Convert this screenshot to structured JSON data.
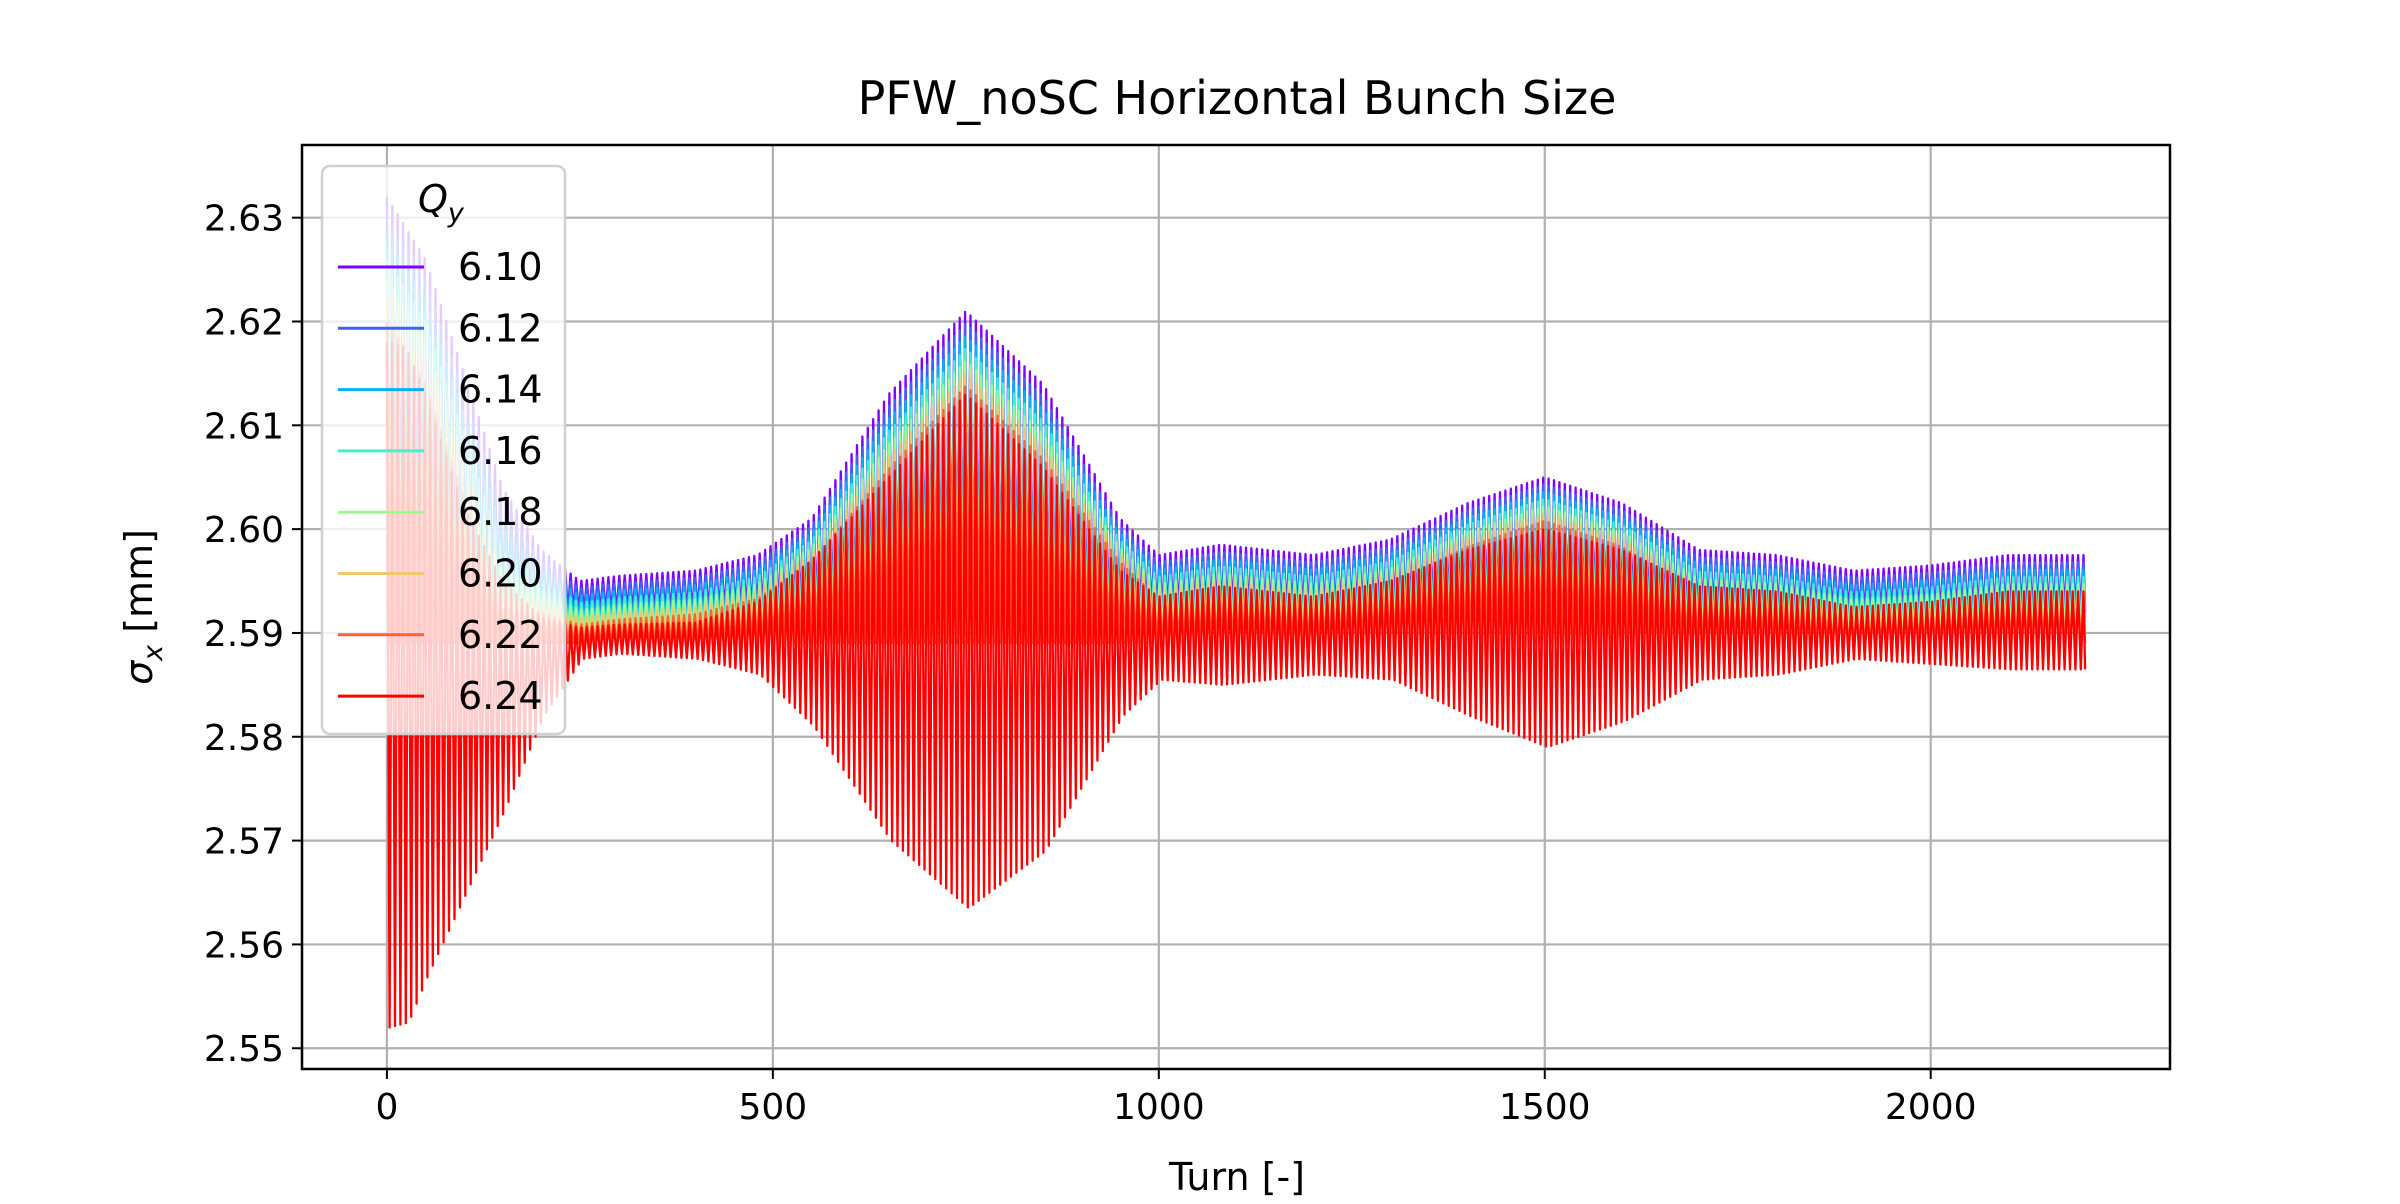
{
  "chart_data": {
    "type": "line",
    "title": "PFW_noSC Horizontal Bunch Size",
    "xlabel": "Turn [-]",
    "ylabel": {
      "symbol": "σ",
      "subscript": "x",
      "unit": " [mm]"
    },
    "xlim": [
      -110,
      2310
    ],
    "ylim": [
      2.548,
      2.637
    ],
    "xticks": [
      0,
      500,
      1000,
      1500,
      2000
    ],
    "xtick_labels": [
      "0",
      "500",
      "1000",
      "1500",
      "2000"
    ],
    "yticks": [
      2.55,
      2.56,
      2.57,
      2.58,
      2.59,
      2.6,
      2.61,
      2.62,
      2.63
    ],
    "ytick_labels": [
      "2.55",
      "2.56",
      "2.57",
      "2.58",
      "2.59",
      "2.60",
      "2.61",
      "2.62",
      "2.63"
    ],
    "grid": true,
    "legend": {
      "title_symbol": "Q",
      "title_subscript": "y",
      "placement": "upper-left"
    },
    "series": [
      {
        "name": "6.10",
        "color": "#7f00ff",
        "upper": [
          [
            0,
            2.632
          ],
          [
            50,
            2.626
          ],
          [
            100,
            2.615
          ],
          [
            150,
            2.604
          ],
          [
            200,
            2.598
          ],
          [
            250,
            2.595
          ],
          [
            300,
            2.5955
          ],
          [
            400,
            2.596
          ],
          [
            480,
            2.5975
          ],
          [
            550,
            2.601
          ],
          [
            650,
            2.613
          ],
          [
            750,
            2.621
          ],
          [
            850,
            2.614
          ],
          [
            950,
            2.601
          ],
          [
            1000,
            2.5975
          ],
          [
            1080,
            2.5985
          ],
          [
            1200,
            2.5975
          ],
          [
            1300,
            2.599
          ],
          [
            1400,
            2.6025
          ],
          [
            1500,
            2.605
          ],
          [
            1600,
            2.6025
          ],
          [
            1700,
            2.598
          ],
          [
            1800,
            2.5975
          ],
          [
            1900,
            2.596
          ],
          [
            2000,
            2.5965
          ],
          [
            2100,
            2.5975
          ],
          [
            2200,
            2.5975
          ]
        ],
        "lower": [
          [
            0,
            2.592
          ],
          [
            100,
            2.592
          ],
          [
            200,
            2.592
          ],
          [
            2200,
            2.592
          ]
        ]
      },
      {
        "name": "6.12",
        "color": "#3f61fa",
        "upper": [
          [
            0,
            2.63
          ],
          [
            50,
            2.624
          ],
          [
            100,
            2.613
          ],
          [
            150,
            2.602
          ],
          [
            200,
            2.597
          ],
          [
            250,
            2.5943
          ],
          [
            300,
            2.5948
          ],
          [
            400,
            2.5953
          ],
          [
            480,
            2.5968
          ],
          [
            550,
            2.6003
          ],
          [
            650,
            2.6118
          ],
          [
            750,
            2.6198
          ],
          [
            850,
            2.6128
          ],
          [
            950,
            2.6003
          ],
          [
            1000,
            2.5968
          ],
          [
            1080,
            2.5978
          ],
          [
            1200,
            2.5968
          ],
          [
            1300,
            2.5983
          ],
          [
            1400,
            2.6018
          ],
          [
            1500,
            2.6043
          ],
          [
            1600,
            2.6018
          ],
          [
            1700,
            2.5973
          ],
          [
            1800,
            2.5968
          ],
          [
            1900,
            2.5953
          ],
          [
            2000,
            2.5958
          ],
          [
            2100,
            2.5968
          ],
          [
            2200,
            2.5968
          ]
        ],
        "lower": [
          [
            0,
            2.5915
          ],
          [
            2200,
            2.5915
          ]
        ]
      },
      {
        "name": "6.14",
        "color": "#01b3f2",
        "upper": [
          [
            0,
            2.628
          ],
          [
            50,
            2.622
          ],
          [
            100,
            2.611
          ],
          [
            150,
            2.6
          ],
          [
            200,
            2.596
          ],
          [
            250,
            2.5936
          ],
          [
            300,
            2.5941
          ],
          [
            400,
            2.5946
          ],
          [
            480,
            2.5961
          ],
          [
            550,
            2.5996
          ],
          [
            650,
            2.6106
          ],
          [
            750,
            2.6186
          ],
          [
            850,
            2.6116
          ],
          [
            950,
            2.5996
          ],
          [
            1000,
            2.5961
          ],
          [
            1080,
            2.5971
          ],
          [
            1200,
            2.5961
          ],
          [
            1300,
            2.5976
          ],
          [
            1400,
            2.6011
          ],
          [
            1500,
            2.6036
          ],
          [
            1600,
            2.6011
          ],
          [
            1700,
            2.5966
          ],
          [
            1800,
            2.5961
          ],
          [
            1900,
            2.5946
          ],
          [
            2000,
            2.5951
          ],
          [
            2100,
            2.5961
          ],
          [
            2200,
            2.5961
          ]
        ],
        "lower": [
          [
            0,
            2.591
          ],
          [
            2200,
            2.591
          ]
        ]
      },
      {
        "name": "6.16",
        "color": "#41f1d0",
        "upper": [
          [
            0,
            2.626
          ],
          [
            50,
            2.62
          ],
          [
            100,
            2.609
          ],
          [
            150,
            2.598
          ],
          [
            200,
            2.595
          ],
          [
            250,
            2.5929
          ],
          [
            300,
            2.5934
          ],
          [
            400,
            2.5939
          ],
          [
            480,
            2.5954
          ],
          [
            550,
            2.5989
          ],
          [
            650,
            2.6094
          ],
          [
            750,
            2.6174
          ],
          [
            850,
            2.6104
          ],
          [
            950,
            2.5989
          ],
          [
            1000,
            2.5954
          ],
          [
            1080,
            2.5964
          ],
          [
            1200,
            2.5954
          ],
          [
            1300,
            2.5969
          ],
          [
            1400,
            2.6004
          ],
          [
            1500,
            2.6029
          ],
          [
            1600,
            2.6004
          ],
          [
            1700,
            2.5959
          ],
          [
            1800,
            2.5954
          ],
          [
            1900,
            2.5939
          ],
          [
            2000,
            2.5944
          ],
          [
            2100,
            2.5954
          ],
          [
            2200,
            2.5954
          ]
        ],
        "lower": [
          [
            0,
            2.5905
          ],
          [
            2200,
            2.5905
          ]
        ]
      },
      {
        "name": "6.18",
        "color": "#9dfa8f",
        "upper": [
          [
            0,
            2.624
          ],
          [
            50,
            2.618
          ],
          [
            100,
            2.607
          ],
          [
            150,
            2.596
          ],
          [
            200,
            2.594
          ],
          [
            250,
            2.5922
          ],
          [
            300,
            2.5927
          ],
          [
            400,
            2.5932
          ],
          [
            480,
            2.5947
          ],
          [
            550,
            2.5982
          ],
          [
            650,
            2.6082
          ],
          [
            750,
            2.6162
          ],
          [
            850,
            2.6092
          ],
          [
            950,
            2.5982
          ],
          [
            1000,
            2.5947
          ],
          [
            1080,
            2.5957
          ],
          [
            1200,
            2.5947
          ],
          [
            1300,
            2.5962
          ],
          [
            1400,
            2.5997
          ],
          [
            1500,
            2.6022
          ],
          [
            1600,
            2.5997
          ],
          [
            1700,
            2.5952
          ],
          [
            1800,
            2.5947
          ],
          [
            1900,
            2.5932
          ],
          [
            2000,
            2.5937
          ],
          [
            2100,
            2.5947
          ],
          [
            2200,
            2.5947
          ]
        ],
        "lower": [
          [
            0,
            2.59
          ],
          [
            2200,
            2.59
          ]
        ]
      },
      {
        "name": "6.20",
        "color": "#f2c66c",
        "upper": [
          [
            0,
            2.622
          ],
          [
            50,
            2.616
          ],
          [
            100,
            2.605
          ],
          [
            150,
            2.594
          ],
          [
            200,
            2.593
          ],
          [
            250,
            2.5915
          ],
          [
            300,
            2.592
          ],
          [
            400,
            2.5925
          ],
          [
            480,
            2.594
          ],
          [
            550,
            2.5975
          ],
          [
            650,
            2.607
          ],
          [
            750,
            2.615
          ],
          [
            850,
            2.608
          ],
          [
            950,
            2.5975
          ],
          [
            1000,
            2.594
          ],
          [
            1080,
            2.595
          ],
          [
            1200,
            2.594
          ],
          [
            1300,
            2.5955
          ],
          [
            1400,
            2.599
          ],
          [
            1500,
            2.6015
          ],
          [
            1600,
            2.599
          ],
          [
            1700,
            2.5945
          ],
          [
            1800,
            2.594
          ],
          [
            1900,
            2.5925
          ],
          [
            2000,
            2.593
          ],
          [
            2100,
            2.594
          ],
          [
            2200,
            2.594
          ]
        ],
        "lower": [
          [
            0,
            2.5895
          ],
          [
            2200,
            2.5895
          ]
        ]
      },
      {
        "name": "6.22",
        "color": "#ff6035",
        "upper": [
          [
            0,
            2.62
          ],
          [
            50,
            2.614
          ],
          [
            100,
            2.603
          ],
          [
            150,
            2.593
          ],
          [
            200,
            2.592
          ],
          [
            250,
            2.5908
          ],
          [
            300,
            2.5913
          ],
          [
            400,
            2.5918
          ],
          [
            480,
            2.5933
          ],
          [
            550,
            2.5968
          ],
          [
            650,
            2.6058
          ],
          [
            750,
            2.6138
          ],
          [
            850,
            2.6068
          ],
          [
            950,
            2.5968
          ],
          [
            1000,
            2.5933
          ],
          [
            1080,
            2.5943
          ],
          [
            1200,
            2.5933
          ],
          [
            1300,
            2.5948
          ],
          [
            1400,
            2.5983
          ],
          [
            1500,
            2.6008
          ],
          [
            1600,
            2.5983
          ],
          [
            1700,
            2.5938
          ],
          [
            1800,
            2.5933
          ],
          [
            1900,
            2.5918
          ],
          [
            2000,
            2.5923
          ],
          [
            2100,
            2.5933
          ],
          [
            2200,
            2.5933
          ]
        ],
        "lower": [
          [
            0,
            2.589
          ],
          [
            2200,
            2.589
          ]
        ]
      },
      {
        "name": "6.24",
        "color": "#ff0000",
        "upper": [
          [
            0,
            2.618
          ],
          [
            25,
            2.6175
          ],
          [
            50,
            2.613
          ],
          [
            100,
            2.602
          ],
          [
            150,
            2.595
          ],
          [
            200,
            2.5915
          ],
          [
            250,
            2.5905
          ],
          [
            300,
            2.5908
          ],
          [
            400,
            2.591
          ],
          [
            480,
            2.593
          ],
          [
            550,
            2.597
          ],
          [
            650,
            2.605
          ],
          [
            750,
            2.613
          ],
          [
            850,
            2.606
          ],
          [
            950,
            2.596
          ],
          [
            1000,
            2.5935
          ],
          [
            1080,
            2.5945
          ],
          [
            1200,
            2.5935
          ],
          [
            1300,
            2.595
          ],
          [
            1400,
            2.598
          ],
          [
            1500,
            2.6
          ],
          [
            1600,
            2.598
          ],
          [
            1700,
            2.5945
          ],
          [
            1800,
            2.594
          ],
          [
            1900,
            2.5925
          ],
          [
            2000,
            2.593
          ],
          [
            2100,
            2.594
          ],
          [
            2200,
            2.594
          ]
        ],
        "lower": [
          [
            0,
            2.552
          ],
          [
            25,
            2.5525
          ],
          [
            50,
            2.557
          ],
          [
            100,
            2.565
          ],
          [
            150,
            2.573
          ],
          [
            200,
            2.582
          ],
          [
            250,
            2.5875
          ],
          [
            300,
            2.588
          ],
          [
            400,
            2.5875
          ],
          [
            480,
            2.586
          ],
          [
            550,
            2.581
          ],
          [
            650,
            2.57
          ],
          [
            750,
            2.5635
          ],
          [
            850,
            2.569
          ],
          [
            950,
            2.582
          ],
          [
            1000,
            2.5855
          ],
          [
            1080,
            2.585
          ],
          [
            1200,
            2.586
          ],
          [
            1300,
            2.5855
          ],
          [
            1400,
            2.582
          ],
          [
            1500,
            2.579
          ],
          [
            1600,
            2.5815
          ],
          [
            1700,
            2.5855
          ],
          [
            1800,
            2.586
          ],
          [
            1900,
            2.5875
          ],
          [
            2000,
            2.587
          ],
          [
            2100,
            2.5865
          ],
          [
            2200,
            2.5865
          ]
        ]
      }
    ]
  }
}
